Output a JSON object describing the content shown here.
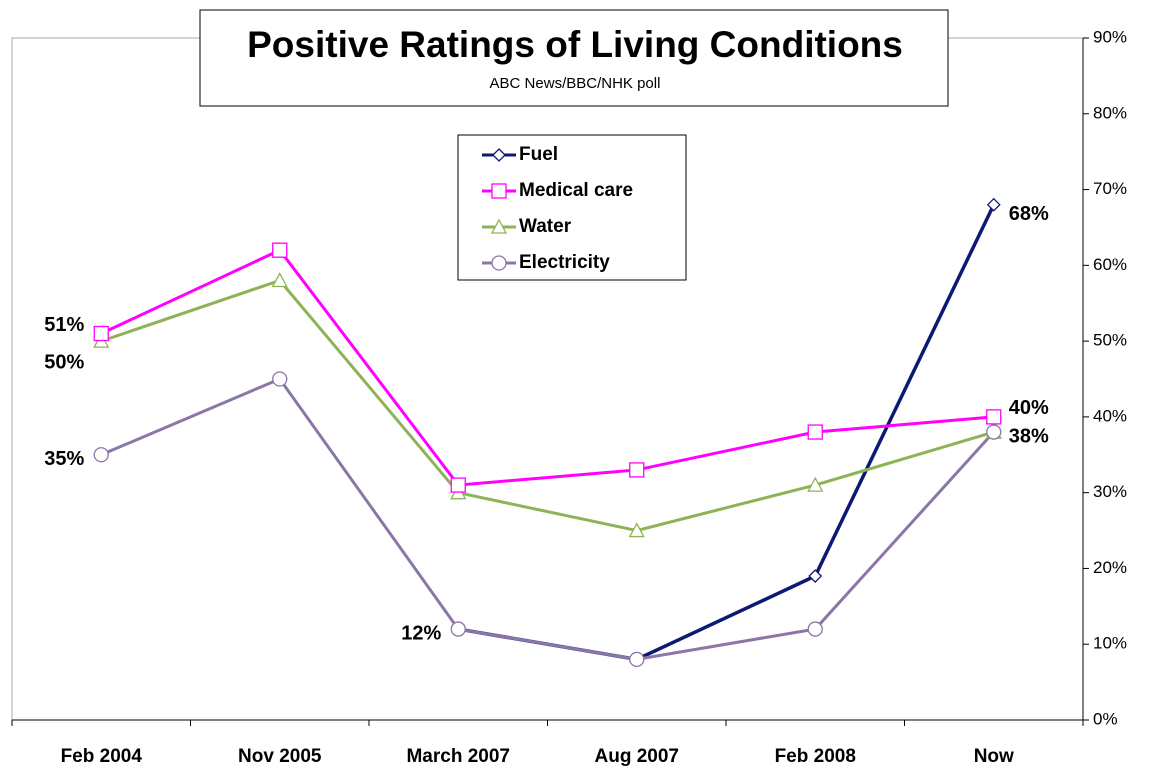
{
  "chart_data": {
    "type": "line",
    "title": "Positive Ratings of Living Conditions",
    "subtitle": "ABC News/BBC/NHK poll",
    "categories": [
      "Feb 2004",
      "Nov 2005",
      "March 2007",
      "Aug 2007",
      "Feb 2008",
      "Now"
    ],
    "series": [
      {
        "name": "Fuel",
        "color": "#0d1a73",
        "marker": "diamond",
        "values": [
          null,
          null,
          12,
          8,
          19,
          68
        ],
        "value_labels": [
          null,
          null,
          null,
          null,
          null,
          "68%"
        ]
      },
      {
        "name": "Medical care",
        "color": "#ff00ff",
        "marker": "square",
        "values": [
          51,
          62,
          31,
          33,
          38,
          40
        ],
        "value_labels": [
          "51%",
          null,
          null,
          null,
          null,
          "40%"
        ]
      },
      {
        "name": "Water",
        "color": "#8db356",
        "marker": "triangle",
        "values": [
          50,
          58,
          30,
          25,
          31,
          38
        ],
        "value_labels": [
          "50%",
          null,
          null,
          null,
          null,
          "38%"
        ]
      },
      {
        "name": "Electricity",
        "color": "#8c75a8",
        "marker": "circle",
        "values": [
          35,
          45,
          12,
          8,
          12,
          38
        ],
        "value_labels": [
          "35%",
          null,
          "12%",
          null,
          null,
          null
        ]
      }
    ],
    "ylim": [
      0,
      90
    ],
    "yticks": [
      {
        "value": 0,
        "label": "0%"
      },
      {
        "value": 10,
        "label": "10%"
      },
      {
        "value": 20,
        "label": "20%"
      },
      {
        "value": 30,
        "label": "30%"
      },
      {
        "value": 40,
        "label": "40%"
      },
      {
        "value": 50,
        "label": "50%"
      },
      {
        "value": 60,
        "label": "60%"
      },
      {
        "value": 70,
        "label": "70%"
      },
      {
        "value": 80,
        "label": "80%"
      },
      {
        "value": 90,
        "label": "90%"
      }
    ],
    "y_axis_side": "right",
    "grid": false,
    "legend": "top"
  }
}
